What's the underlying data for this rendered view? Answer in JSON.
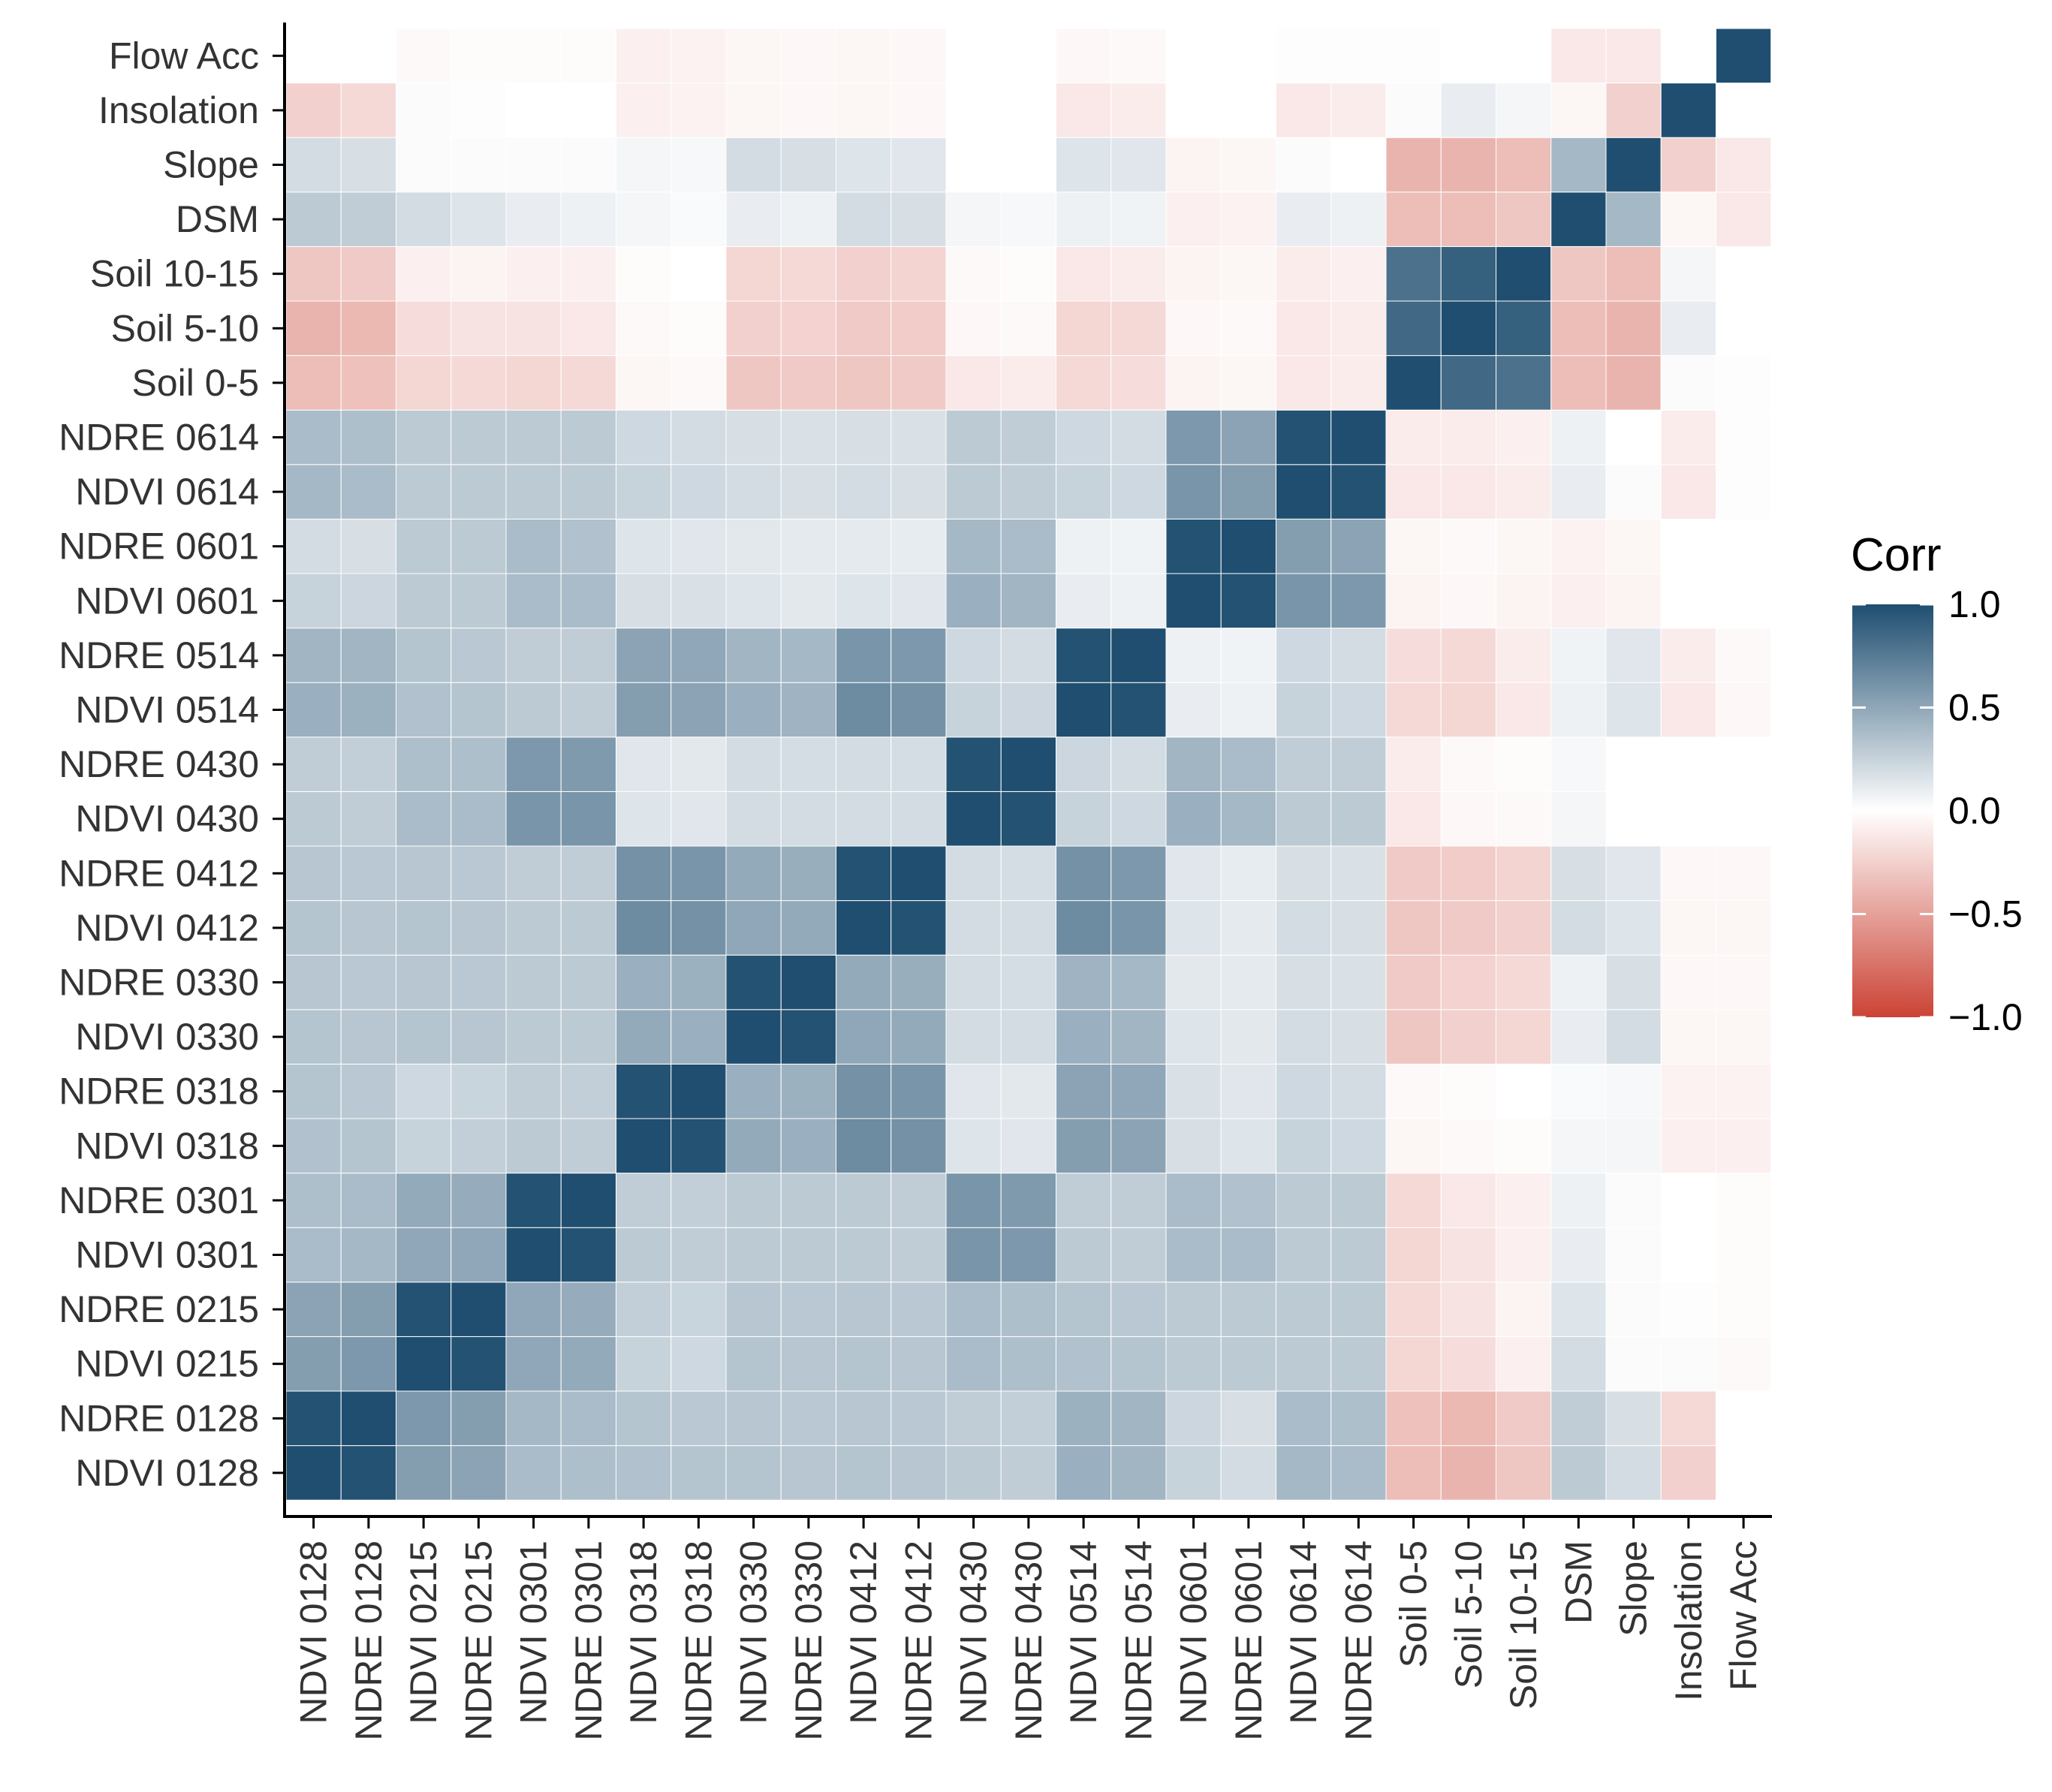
{
  "chart_data": {
    "type": "heatmap",
    "title": "",
    "xlabel": "",
    "ylabel": "",
    "variables": [
      "NDVI 0128",
      "NDRE 0128",
      "NDVI 0215",
      "NDRE 0215",
      "NDVI 0301",
      "NDRE 0301",
      "NDVI 0318",
      "NDRE 0318",
      "NDVI 0330",
      "NDRE 0330",
      "NDVI 0412",
      "NDRE 0412",
      "NDVI 0430",
      "NDRE 0430",
      "NDVI 0514",
      "NDRE 0514",
      "NDVI 0601",
      "NDRE 0601",
      "NDVI 0614",
      "NDRE 0614",
      "Soil 0-5",
      "Soil 5-10",
      "Soil 10-15",
      "DSM",
      "Slope",
      "Insolation",
      "Flow Acc"
    ],
    "matrix": [
      [
        1,
        0.98,
        0.55,
        0.52,
        0.38,
        0.36,
        0.35,
        0.33,
        0.33,
        0.32,
        0.33,
        0.32,
        0.3,
        0.28,
        0.45,
        0.42,
        0.25,
        0.2,
        0.4,
        0.38,
        -0.35,
        -0.4,
        -0.3,
        0.3,
        0.2,
        -0.25,
        null
      ],
      [
        0.98,
        1,
        0.58,
        0.55,
        0.4,
        0.38,
        0.33,
        0.31,
        0.32,
        0.31,
        0.32,
        0.31,
        0.28,
        0.27,
        0.44,
        0.42,
        0.23,
        0.18,
        0.38,
        0.36,
        -0.33,
        -0.38,
        -0.28,
        0.28,
        0.18,
        -0.2,
        null
      ],
      [
        0.55,
        0.58,
        1,
        0.98,
        0.5,
        0.48,
        0.25,
        0.22,
        0.33,
        0.32,
        0.33,
        0.32,
        0.38,
        0.36,
        0.35,
        0.33,
        0.3,
        0.3,
        0.3,
        0.3,
        -0.22,
        -0.18,
        -0.08,
        0.2,
        0.02,
        0.02,
        -0.03
      ],
      [
        0.52,
        0.55,
        0.98,
        1,
        0.5,
        0.47,
        0.27,
        0.24,
        0.32,
        0.31,
        0.32,
        0.31,
        0.38,
        0.36,
        0.33,
        0.31,
        0.3,
        0.3,
        0.3,
        0.3,
        -0.2,
        -0.15,
        -0.06,
        0.15,
        0.02,
        0.01,
        -0.02
      ],
      [
        0.38,
        0.4,
        0.5,
        0.5,
        1,
        0.98,
        0.3,
        0.28,
        0.3,
        0.3,
        0.3,
        0.28,
        0.6,
        0.58,
        0.3,
        0.28,
        0.38,
        0.38,
        0.3,
        0.3,
        -0.22,
        -0.15,
        -0.08,
        0.1,
        0.02,
        0,
        -0.02
      ],
      [
        0.36,
        0.38,
        0.48,
        0.47,
        0.98,
        1,
        0.28,
        0.27,
        0.3,
        0.3,
        0.3,
        0.28,
        0.6,
        0.57,
        0.28,
        0.28,
        0.38,
        0.35,
        0.3,
        0.3,
        -0.2,
        -0.12,
        -0.08,
        0.08,
        0.02,
        0,
        -0.02
      ],
      [
        0.35,
        0.33,
        0.25,
        0.27,
        0.3,
        0.28,
        1,
        0.98,
        0.48,
        0.45,
        0.65,
        0.62,
        0.15,
        0.14,
        0.55,
        0.52,
        0.18,
        0.15,
        0.25,
        0.22,
        -0.05,
        -0.03,
        -0.02,
        0.05,
        0.05,
        -0.08,
        -0.08
      ],
      [
        0.33,
        0.31,
        0.22,
        0.24,
        0.28,
        0.27,
        0.98,
        1,
        0.45,
        0.44,
        0.62,
        0.6,
        0.14,
        0.13,
        0.52,
        0.5,
        0.17,
        0.14,
        0.22,
        0.2,
        -0.03,
        -0.02,
        0,
        0.03,
        0.04,
        -0.07,
        -0.07
      ],
      [
        0.33,
        0.32,
        0.33,
        0.32,
        0.3,
        0.3,
        0.48,
        0.45,
        1,
        0.98,
        0.5,
        0.48,
        0.2,
        0.2,
        0.45,
        0.42,
        0.15,
        0.13,
        0.2,
        0.18,
        -0.3,
        -0.25,
        -0.22,
        0.1,
        0.2,
        -0.05,
        -0.05
      ],
      [
        0.32,
        0.31,
        0.32,
        0.31,
        0.3,
        0.3,
        0.45,
        0.44,
        0.98,
        1,
        0.48,
        0.46,
        0.2,
        0.19,
        0.43,
        0.4,
        0.13,
        0.12,
        0.18,
        0.17,
        -0.28,
        -0.24,
        -0.2,
        0.08,
        0.18,
        -0.04,
        -0.04
      ],
      [
        0.33,
        0.32,
        0.33,
        0.32,
        0.3,
        0.3,
        0.65,
        0.62,
        0.5,
        0.48,
        1,
        0.98,
        0.2,
        0.2,
        0.65,
        0.6,
        0.15,
        0.12,
        0.2,
        0.18,
        -0.3,
        -0.28,
        -0.25,
        0.2,
        0.15,
        -0.05,
        -0.05
      ],
      [
        0.32,
        0.31,
        0.32,
        0.31,
        0.28,
        0.28,
        0.62,
        0.6,
        0.48,
        0.46,
        0.98,
        1,
        0.2,
        0.19,
        0.62,
        0.58,
        0.14,
        0.11,
        0.18,
        0.17,
        -0.28,
        -0.27,
        -0.23,
        0.18,
        0.14,
        -0.04,
        -0.04
      ],
      [
        0.3,
        0.28,
        0.38,
        0.38,
        0.6,
        0.6,
        0.15,
        0.14,
        0.2,
        0.2,
        0.2,
        0.2,
        1,
        0.98,
        0.25,
        0.22,
        0.45,
        0.4,
        0.3,
        0.3,
        -0.12,
        -0.04,
        -0.03,
        0.05,
        0,
        0,
        0
      ],
      [
        0.28,
        0.27,
        0.36,
        0.36,
        0.58,
        0.57,
        0.14,
        0.13,
        0.2,
        0.19,
        0.2,
        0.19,
        0.98,
        1,
        0.23,
        0.2,
        0.42,
        0.38,
        0.28,
        0.28,
        -0.1,
        -0.03,
        -0.02,
        0.04,
        0,
        0,
        0
      ],
      [
        0.45,
        0.44,
        0.35,
        0.33,
        0.3,
        0.28,
        0.55,
        0.52,
        0.45,
        0.43,
        0.65,
        0.62,
        0.25,
        0.23,
        1,
        0.98,
        0.1,
        0.08,
        0.25,
        0.22,
        -0.2,
        -0.22,
        -0.12,
        0.08,
        0.15,
        -0.12,
        -0.04
      ],
      [
        0.42,
        0.42,
        0.33,
        0.31,
        0.28,
        0.28,
        0.52,
        0.5,
        0.42,
        0.4,
        0.6,
        0.58,
        0.22,
        0.2,
        0.98,
        1,
        0.08,
        0.07,
        0.22,
        0.2,
        -0.18,
        -0.2,
        -0.1,
        0.07,
        0.14,
        -0.1,
        -0.03
      ],
      [
        0.25,
        0.23,
        0.3,
        0.3,
        0.38,
        0.38,
        0.18,
        0.17,
        0.15,
        0.13,
        0.15,
        0.14,
        0.45,
        0.42,
        0.1,
        0.08,
        1,
        0.98,
        0.6,
        0.58,
        -0.06,
        -0.04,
        -0.06,
        -0.08,
        -0.06,
        0,
        0
      ],
      [
        0.2,
        0.18,
        0.3,
        0.3,
        0.38,
        0.35,
        0.15,
        0.14,
        0.13,
        0.12,
        0.12,
        0.11,
        0.4,
        0.38,
        0.08,
        0.07,
        0.98,
        1,
        0.55,
        0.52,
        -0.05,
        -0.03,
        -0.05,
        -0.07,
        -0.05,
        0,
        0
      ],
      [
        0.4,
        0.38,
        0.3,
        0.3,
        0.3,
        0.3,
        0.25,
        0.22,
        0.2,
        0.18,
        0.2,
        0.18,
        0.3,
        0.28,
        0.25,
        0.22,
        0.6,
        0.55,
        1,
        0.98,
        -0.12,
        -0.12,
        -0.1,
        0.1,
        0.02,
        -0.12,
        0.01
      ],
      [
        0.38,
        0.36,
        0.3,
        0.3,
        0.3,
        0.3,
        0.22,
        0.2,
        0.18,
        0.17,
        0.18,
        0.17,
        0.3,
        0.28,
        0.22,
        0.2,
        0.58,
        0.52,
        0.98,
        1,
        -0.1,
        -0.1,
        -0.08,
        0.08,
        0,
        -0.1,
        0.01
      ],
      [
        -0.35,
        -0.33,
        -0.22,
        -0.2,
        -0.22,
        -0.2,
        -0.05,
        -0.03,
        -0.3,
        -0.28,
        -0.3,
        -0.28,
        -0.12,
        -0.1,
        -0.2,
        -0.18,
        -0.06,
        -0.05,
        -0.12,
        -0.1,
        1,
        0.85,
        0.8,
        -0.35,
        -0.4,
        0.02,
        0.01
      ],
      [
        -0.4,
        -0.38,
        -0.18,
        -0.15,
        -0.15,
        -0.12,
        -0.03,
        -0.02,
        -0.25,
        -0.24,
        -0.28,
        -0.27,
        -0.04,
        -0.03,
        -0.22,
        -0.2,
        -0.04,
        -0.03,
        -0.12,
        -0.1,
        0.85,
        1,
        0.9,
        -0.35,
        -0.4,
        0.1,
        0
      ],
      [
        -0.3,
        -0.28,
        -0.08,
        -0.06,
        -0.08,
        -0.08,
        -0.02,
        0,
        -0.22,
        -0.2,
        -0.25,
        -0.23,
        -0.03,
        -0.02,
        -0.12,
        -0.1,
        -0.06,
        -0.05,
        -0.1,
        -0.08,
        0.8,
        0.9,
        1,
        -0.3,
        -0.35,
        0.05,
        0
      ],
      [
        0.3,
        0.28,
        0.2,
        0.15,
        0.1,
        0.08,
        0.05,
        0.03,
        0.1,
        0.08,
        0.2,
        0.18,
        0.05,
        0.04,
        0.08,
        0.07,
        -0.08,
        -0.07,
        0.1,
        0.08,
        -0.35,
        -0.35,
        -0.3,
        1,
        0.4,
        -0.05,
        -0.12
      ],
      [
        0.2,
        0.18,
        0.02,
        0.02,
        0.02,
        0.02,
        0.05,
        0.04,
        0.2,
        0.18,
        0.15,
        0.14,
        0,
        0,
        0.15,
        0.14,
        -0.06,
        -0.05,
        0.02,
        0,
        -0.4,
        -0.4,
        -0.35,
        0.4,
        1,
        -0.25,
        -0.12
      ],
      [
        -0.25,
        -0.2,
        0.02,
        0.01,
        0,
        0,
        -0.08,
        -0.07,
        -0.05,
        -0.04,
        -0.05,
        -0.04,
        0,
        0,
        -0.12,
        -0.1,
        0,
        0,
        -0.12,
        -0.1,
        0.02,
        0.1,
        0.05,
        -0.05,
        -0.25,
        1,
        null
      ],
      [
        null,
        null,
        -0.03,
        -0.02,
        -0.02,
        -0.02,
        -0.08,
        -0.07,
        -0.05,
        -0.04,
        -0.05,
        -0.04,
        0,
        0,
        -0.04,
        -0.03,
        0,
        0,
        0.01,
        0.01,
        0.01,
        0,
        0,
        -0.12,
        -0.12,
        null,
        1
      ]
    ],
    "legend": {
      "title": "Corr",
      "ticks": [
        "1.0",
        "0.5",
        "0.0",
        "−0.5",
        "−1.0"
      ],
      "tick_values": [
        1.0,
        0.5,
        0.0,
        -0.5,
        -1.0
      ],
      "range": [
        -1,
        1
      ],
      "placement": "right"
    },
    "colors": {
      "high": "#1f4e70",
      "mid": "#ffffff",
      "low": "#cb4335",
      "axis": "#000000",
      "label": "#333333",
      "cell_border": "#ffffff"
    }
  }
}
